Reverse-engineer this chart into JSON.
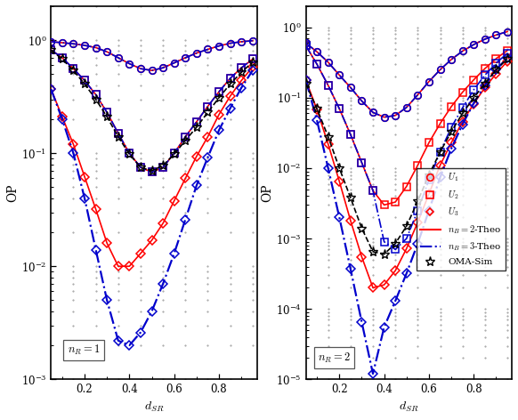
{
  "fig_width": 5.82,
  "fig_height": 4.72,
  "dpi": 100,
  "background": "#ffffff",
  "left_panel": {
    "ylim": [
      0.001,
      2.0
    ],
    "xlim": [
      0.05,
      0.97
    ],
    "yticks": [
      0.001,
      0.01,
      0.1,
      1.0
    ],
    "xticks": [
      0.2,
      0.4,
      0.6,
      0.8
    ]
  },
  "right_panel": {
    "ylim": [
      1e-05,
      2.0
    ],
    "xlim": [
      0.05,
      0.97
    ],
    "yticks": [
      1e-05,
      0.0001,
      0.001,
      0.01,
      0.1,
      1.0
    ],
    "xticks": [
      0.2,
      0.4,
      0.6,
      0.8
    ]
  },
  "x_vals": [
    0.05,
    0.1,
    0.15,
    0.2,
    0.25,
    0.3,
    0.35,
    0.4,
    0.45,
    0.5,
    0.55,
    0.6,
    0.65,
    0.7,
    0.75,
    0.8,
    0.85,
    0.9,
    0.95
  ],
  "L_U1_red": [
    0.97,
    0.95,
    0.93,
    0.9,
    0.86,
    0.79,
    0.7,
    0.62,
    0.56,
    0.54,
    0.57,
    0.63,
    0.7,
    0.77,
    0.83,
    0.89,
    0.94,
    0.97,
    0.99
  ],
  "L_U2_red": [
    0.82,
    0.7,
    0.56,
    0.44,
    0.33,
    0.23,
    0.15,
    0.1,
    0.075,
    0.068,
    0.075,
    0.1,
    0.14,
    0.19,
    0.26,
    0.35,
    0.46,
    0.57,
    0.68
  ],
  "L_U3_red": [
    0.37,
    0.21,
    0.12,
    0.062,
    0.032,
    0.016,
    0.01,
    0.01,
    0.013,
    0.017,
    0.024,
    0.038,
    0.06,
    0.094,
    0.14,
    0.22,
    0.32,
    0.44,
    0.58
  ],
  "L_U1_blue": [
    0.97,
    0.95,
    0.93,
    0.9,
    0.86,
    0.79,
    0.7,
    0.62,
    0.56,
    0.54,
    0.57,
    0.63,
    0.7,
    0.77,
    0.83,
    0.89,
    0.94,
    0.97,
    0.99
  ],
  "L_U2_blue": [
    0.82,
    0.7,
    0.56,
    0.44,
    0.33,
    0.23,
    0.15,
    0.1,
    0.075,
    0.068,
    0.075,
    0.1,
    0.14,
    0.19,
    0.26,
    0.35,
    0.46,
    0.57,
    0.68
  ],
  "L_U3_blue": [
    0.37,
    0.2,
    0.1,
    0.04,
    0.014,
    0.005,
    0.0022,
    0.002,
    0.0026,
    0.004,
    0.007,
    0.013,
    0.026,
    0.052,
    0.092,
    0.16,
    0.25,
    0.38,
    0.54
  ],
  "L_OMA_star": [
    0.82,
    0.68,
    0.54,
    0.41,
    0.3,
    0.21,
    0.14,
    0.098,
    0.075,
    0.07,
    0.078,
    0.098,
    0.13,
    0.17,
    0.23,
    0.31,
    0.41,
    0.52,
    0.64
  ],
  "R_U1_red": [
    0.6,
    0.45,
    0.32,
    0.21,
    0.14,
    0.09,
    0.062,
    0.053,
    0.056,
    0.073,
    0.11,
    0.17,
    0.25,
    0.35,
    0.46,
    0.57,
    0.68,
    0.78,
    0.87
  ],
  "R_U2_red": [
    0.55,
    0.3,
    0.15,
    0.07,
    0.03,
    0.012,
    0.0048,
    0.003,
    0.0033,
    0.0055,
    0.011,
    0.023,
    0.043,
    0.075,
    0.12,
    0.18,
    0.26,
    0.36,
    0.47
  ],
  "R_U3_red": [
    0.18,
    0.068,
    0.022,
    0.0065,
    0.0018,
    0.00055,
    0.0002,
    0.00022,
    0.00035,
    0.00072,
    0.0017,
    0.0043,
    0.011,
    0.023,
    0.046,
    0.082,
    0.14,
    0.22,
    0.33
  ],
  "R_U1_blue": [
    0.6,
    0.45,
    0.32,
    0.21,
    0.14,
    0.09,
    0.062,
    0.053,
    0.056,
    0.073,
    0.11,
    0.17,
    0.25,
    0.35,
    0.46,
    0.57,
    0.68,
    0.78,
    0.87
  ],
  "R_U2_blue": [
    0.55,
    0.3,
    0.15,
    0.07,
    0.03,
    0.012,
    0.0048,
    0.0009,
    0.0007,
    0.001,
    0.0025,
    0.0068,
    0.017,
    0.038,
    0.072,
    0.13,
    0.21,
    0.31,
    0.43
  ],
  "R_U3_blue": [
    0.18,
    0.048,
    0.01,
    0.002,
    0.00037,
    6.5e-05,
    1.2e-05,
    5.5e-05,
    0.00013,
    0.00032,
    0.00085,
    0.0025,
    0.0074,
    0.019,
    0.042,
    0.084,
    0.15,
    0.25,
    0.37
  ],
  "R_OMA_star": [
    0.16,
    0.07,
    0.028,
    0.01,
    0.0038,
    0.0014,
    0.00065,
    0.0006,
    0.00085,
    0.0015,
    0.0034,
    0.008,
    0.017,
    0.033,
    0.06,
    0.1,
    0.16,
    0.25,
    0.36
  ],
  "red_color": "#ff0000",
  "blue_color": "#0000cc",
  "black_color": "#000000"
}
